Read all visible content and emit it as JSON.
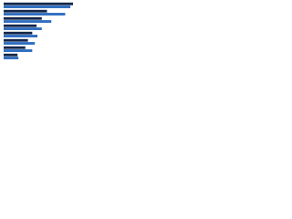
{
  "chart_data": {
    "type": "hbar",
    "categories": [
      null,
      null,
      null,
      null,
      null,
      null,
      null,
      null
    ],
    "series": [
      {
        "color": "#13264a",
        "values": [
          80,
          50,
          44,
          38,
          33,
          28,
          25,
          16
        ]
      },
      {
        "color": "#2e6dc0",
        "values": [
          77,
          71,
          55,
          44,
          39,
          36,
          33,
          17
        ]
      }
    ],
    "xlim": [
      0,
      100
    ]
  }
}
